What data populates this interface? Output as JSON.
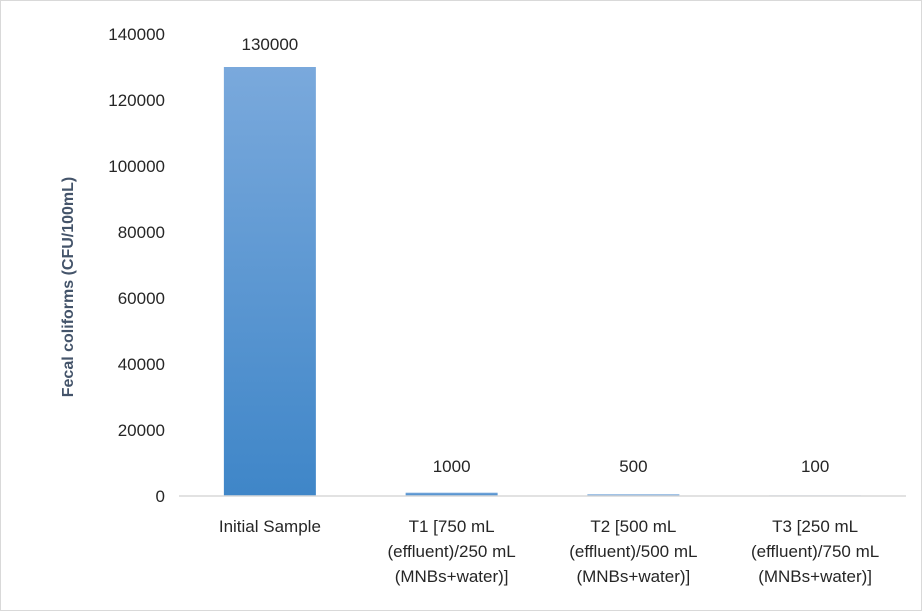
{
  "chart_data": {
    "type": "bar",
    "title": "",
    "xlabel": "",
    "ylabel": "Fecal coliforms (CFU/100mL)",
    "categories": [
      [
        "Initial Sample"
      ],
      [
        "T1 [750 mL",
        "(effluent)/250 mL",
        "(MNBs+water)]"
      ],
      [
        "T2 [500 mL",
        "(effluent)/500 mL",
        "(MNBs+water)]"
      ],
      [
        "T3 [250 mL",
        "(effluent)/750 mL",
        "(MNBs+water)]"
      ]
    ],
    "values": [
      130000,
      1000,
      500,
      100
    ],
    "data_labels": [
      "130000",
      "1000",
      "500",
      "100"
    ],
    "ylim": [
      0,
      140000
    ],
    "yticks": [
      "0",
      "20000",
      "40000",
      "60000",
      "80000",
      "100000",
      "120000",
      "140000"
    ],
    "grid": false,
    "legend": "none",
    "colors": {
      "bar_top": "#7aa9dc",
      "bar_bottom": "#3f86c8",
      "axis_line": "#d9d9d9",
      "ylabel": "#44546a",
      "text": "#262626"
    }
  }
}
